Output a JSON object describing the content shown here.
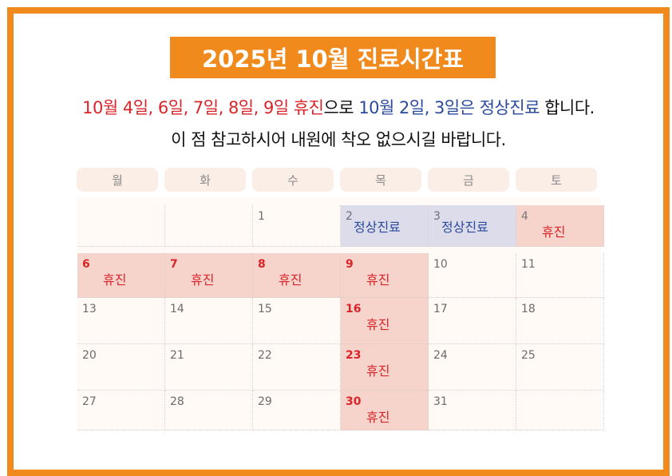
{
  "title": "2025년 10월 진료시간표",
  "notice": {
    "line1_red": "10월 4일, 6일, 7일, 8일, 9일 휴진",
    "line1_mid": "으로 ",
    "line1_blue": "10월 2일, 3일은 정상진료",
    "line1_end": " 합니다.",
    "line2": "이 점 참고하시어 내원에 착오 없으시길 바랍니다."
  },
  "weekdays": [
    "월",
    "화",
    "수",
    "목",
    "금",
    "토"
  ],
  "cells": [
    {
      "day": "",
      "status": ""
    },
    {
      "day": "",
      "status": ""
    },
    {
      "day": "1",
      "status": ""
    },
    {
      "day": "2",
      "status": "normal",
      "label": "정상진료"
    },
    {
      "day": "3",
      "status": "normal",
      "label": "정상진료"
    },
    {
      "day": "4",
      "status": "holiday",
      "label": "휴진"
    },
    {
      "day": "6",
      "status": "holiday",
      "label": "휴진"
    },
    {
      "day": "7",
      "status": "holiday",
      "label": "휴진"
    },
    {
      "day": "8",
      "status": "holiday",
      "label": "휴진"
    },
    {
      "day": "9",
      "status": "holiday",
      "label": "휴진"
    },
    {
      "day": "10",
      "status": ""
    },
    {
      "day": "11",
      "status": ""
    },
    {
      "day": "13",
      "status": ""
    },
    {
      "day": "14",
      "status": ""
    },
    {
      "day": "15",
      "status": ""
    },
    {
      "day": "16",
      "status": "holiday",
      "label": "휴진"
    },
    {
      "day": "17",
      "status": ""
    },
    {
      "day": "18",
      "status": ""
    },
    {
      "day": "20",
      "status": ""
    },
    {
      "day": "21",
      "status": ""
    },
    {
      "day": "22",
      "status": ""
    },
    {
      "day": "23",
      "status": "holiday",
      "label": "휴진"
    },
    {
      "day": "24",
      "status": ""
    },
    {
      "day": "25",
      "status": ""
    },
    {
      "day": "27",
      "status": ""
    },
    {
      "day": "28",
      "status": ""
    },
    {
      "day": "29",
      "status": ""
    },
    {
      "day": "30",
      "status": "holiday",
      "label": "휴진"
    },
    {
      "day": "31",
      "status": ""
    },
    {
      "day": "",
      "status": ""
    }
  ],
  "colors": {
    "frame": "#f08a1c",
    "holiday_text": "#d9252a",
    "normal_text": "#2a4a9c",
    "holiday_bg": "#f6d4cb",
    "normal_bg": "#dcdcea"
  }
}
